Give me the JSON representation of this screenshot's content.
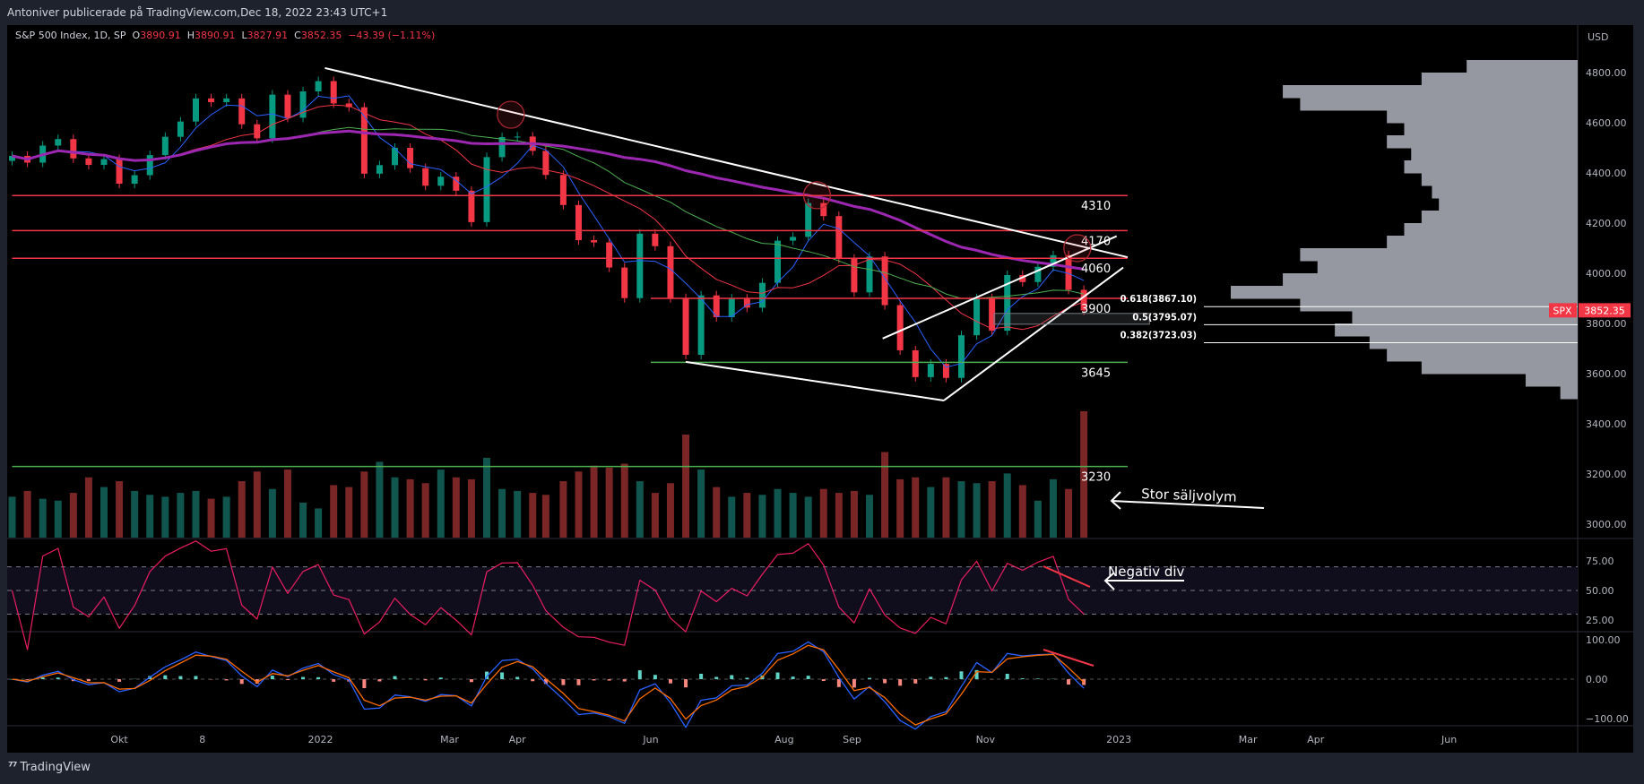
{
  "header": {
    "publisher_line": "Antoniver publicerade på TradingView.com,Dec 18, 2022 23:43 UTC+1"
  },
  "legend": {
    "symbol": "S&P 500 Index, 1D, SP",
    "open_label": "O",
    "open": "3890.91",
    "high_label": "H",
    "high": "3890.91",
    "low_label": "L",
    "low": "3827.91",
    "close_label": "C",
    "close": "3852.35",
    "change": "−43.39 (−1.11%)"
  },
  "price_scale": {
    "currency": "USD",
    "ticks": [
      "4800.00",
      "4600.00",
      "4400.00",
      "4200.00",
      "4000.00",
      "3800.00",
      "3600.00",
      "3400.00",
      "3200.00",
      "3000.00"
    ]
  },
  "last_price": {
    "symbol": "SPX",
    "value": "3852.35",
    "color": "#f23645"
  },
  "rsi_scale": {
    "ticks": [
      "75.00",
      "50.00",
      "25.00"
    ]
  },
  "macd_scale": {
    "ticks": [
      "100.00",
      "0.00",
      "−100.00"
    ]
  },
  "footer": {
    "brand": "TradingView"
  },
  "colors": {
    "up": "#089981",
    "down": "#f23645",
    "ma20": "#2962ff",
    "ma50": "#f23645",
    "ma100": "#4caf50",
    "ma200": "#9c27b0",
    "rsi": "#e91e63",
    "macd": "#2962ff",
    "signal": "#ff6d00",
    "profile": "#9598a1"
  },
  "chart_data": {
    "type": "candlestick",
    "title": "S&P 500 Index, 1D, SP",
    "ylim": [
      2900,
      4900
    ],
    "x_axis": [
      {
        "label": "Okt",
        "date": "2021-10-01"
      },
      {
        "label": "8",
        "date": "2021-11-08"
      },
      {
        "label": "2022",
        "date": "2022-01-01"
      },
      {
        "label": "Mar",
        "date": "2022-03-01"
      },
      {
        "label": "Apr",
        "date": "2022-04-01"
      },
      {
        "label": "Jun",
        "date": "2022-06-01"
      },
      {
        "label": "Aug",
        "date": "2022-08-01"
      },
      {
        "label": "Sep",
        "date": "2022-09-01"
      },
      {
        "label": "Nov",
        "date": "2022-11-01"
      },
      {
        "label": "2023",
        "date": "2023-01-01"
      },
      {
        "label": "Mar",
        "date": "2023-03-01"
      },
      {
        "label": "Apr",
        "date": "2023-04-01"
      },
      {
        "label": "Jun",
        "date": "2023-06-01"
      },
      {
        "label": "Aug",
        "date": "2023-08-01"
      }
    ],
    "columns": [
      "date",
      "close",
      "volume"
    ],
    "bars": [
      [
        "2021-08-13",
        4468,
        3.6
      ],
      [
        "2021-08-20",
        4441,
        3.9
      ],
      [
        "2021-08-27",
        4509,
        3.5
      ],
      [
        "2021-09-03",
        4535,
        3.4
      ],
      [
        "2021-09-10",
        4458,
        3.8
      ],
      [
        "2021-09-17",
        4432,
        4.6
      ],
      [
        "2021-09-24",
        4455,
        4.1
      ],
      [
        "2021-10-01",
        4357,
        4.4
      ],
      [
        "2021-10-08",
        4391,
        3.9
      ],
      [
        "2021-10-15",
        4471,
        3.7
      ],
      [
        "2021-10-22",
        4544,
        3.6
      ],
      [
        "2021-10-29",
        4605,
        3.8
      ],
      [
        "2021-11-05",
        4697,
        3.9
      ],
      [
        "2021-11-12",
        4682,
        3.5
      ],
      [
        "2021-11-19",
        4697,
        3.6
      ],
      [
        "2021-11-26",
        4594,
        4.4
      ],
      [
        "2021-12-03",
        4538,
        4.9
      ],
      [
        "2021-12-10",
        4712,
        4.0
      ],
      [
        "2021-12-17",
        4620,
        5.0
      ],
      [
        "2021-12-24",
        4725,
        3.3
      ],
      [
        "2021-12-31",
        4766,
        3.0
      ],
      [
        "2022-01-07",
        4677,
        4.2
      ],
      [
        "2022-01-14",
        4662,
        4.1
      ],
      [
        "2022-01-21",
        4397,
        4.9
      ],
      [
        "2022-01-28",
        4431,
        5.4
      ],
      [
        "2022-02-04",
        4500,
        4.6
      ],
      [
        "2022-02-11",
        4419,
        4.5
      ],
      [
        "2022-02-18",
        4349,
        4.3
      ],
      [
        "2022-02-25",
        4385,
        5.0
      ],
      [
        "2022-03-04",
        4329,
        4.6
      ],
      [
        "2022-03-11",
        4204,
        4.5
      ],
      [
        "2022-03-18",
        4463,
        5.6
      ],
      [
        "2022-03-25",
        4543,
        4.0
      ],
      [
        "2022-04-01",
        4545,
        3.9
      ],
      [
        "2022-04-08",
        4488,
        3.8
      ],
      [
        "2022-04-14",
        4392,
        3.7
      ],
      [
        "2022-04-22",
        4272,
        4.4
      ],
      [
        "2022-04-29",
        4132,
        4.9
      ],
      [
        "2022-05-06",
        4123,
        5.2
      ],
      [
        "2022-05-13",
        4023,
        5.1
      ],
      [
        "2022-05-20",
        3901,
        5.3
      ],
      [
        "2022-05-27",
        4158,
        4.4
      ],
      [
        "2022-06-03",
        4108,
        3.8
      ],
      [
        "2022-06-10",
        3901,
        4.3
      ],
      [
        "2022-06-17",
        3675,
        6.8
      ],
      [
        "2022-06-24",
        3912,
        5.0
      ],
      [
        "2022-07-01",
        3825,
        4.1
      ],
      [
        "2022-07-08",
        3899,
        3.6
      ],
      [
        "2022-07-15",
        3863,
        3.8
      ],
      [
        "2022-07-22",
        3962,
        3.7
      ],
      [
        "2022-07-29",
        4130,
        4.0
      ],
      [
        "2022-08-05",
        4145,
        3.8
      ],
      [
        "2022-08-12",
        4280,
        3.6
      ],
      [
        "2022-08-19",
        4228,
        4.0
      ],
      [
        "2022-08-26",
        4058,
        3.8
      ],
      [
        "2022-09-02",
        3924,
        3.9
      ],
      [
        "2022-09-09",
        4067,
        3.7
      ],
      [
        "2022-09-16",
        3873,
        5.9
      ],
      [
        "2022-09-23",
        3693,
        4.5
      ],
      [
        "2022-09-30",
        3586,
        4.6
      ],
      [
        "2022-10-07",
        3639,
        4.1
      ],
      [
        "2022-10-14",
        3583,
        4.6
      ],
      [
        "2022-10-21",
        3753,
        4.4
      ],
      [
        "2022-10-28",
        3901,
        4.3
      ],
      [
        "2022-11-04",
        3771,
        4.4
      ],
      [
        "2022-11-11",
        3993,
        4.8
      ],
      [
        "2022-11-18",
        3965,
        4.2
      ],
      [
        "2022-11-25",
        4026,
        3.4
      ],
      [
        "2022-12-02",
        4072,
        4.5
      ],
      [
        "2022-12-09",
        3934,
        4.0
      ],
      [
        "2022-12-16",
        3852,
        8.0
      ]
    ],
    "moving_averages_days": [
      20,
      50,
      100,
      200
    ],
    "indicators": {
      "rsi_period_days": 14,
      "rsi_levels": [
        70,
        50,
        30
      ],
      "macd_days": [
        12,
        26,
        9
      ],
      "rsi_ylim": [
        10,
        95
      ],
      "macd_ylim": [
        -120,
        120
      ]
    },
    "volume_profile": {
      "bucket_start": 3500,
      "bucket_size": 50,
      "relative": [
        0.05,
        0.15,
        0.45,
        0.55,
        0.6,
        0.7,
        0.65,
        0.8,
        1.0,
        0.85,
        0.75,
        0.8,
        0.55,
        0.5,
        0.45,
        0.4,
        0.42,
        0.45,
        0.5,
        0.48,
        0.55,
        0.5,
        0.55,
        0.8,
        0.85,
        0.45,
        0.32
      ]
    },
    "horizontal_levels": [
      {
        "label": "4310",
        "price": 4310,
        "color": "#f23645",
        "from": "2021-08-13"
      },
      {
        "label": "4170",
        "price": 4170,
        "color": "#f23645",
        "from": "2021-08-13"
      },
      {
        "label": "4060",
        "price": 4060,
        "color": "#f23645",
        "from": "2021-08-13"
      },
      {
        "label": "3900",
        "price": 3900,
        "color": "#f23645",
        "from": "2022-06-01"
      },
      {
        "label": "3645",
        "price": 3645,
        "color": "#4caf50",
        "from": "2022-06-01"
      },
      {
        "label": "3230",
        "price": 3230,
        "color": "#4caf50",
        "from": "2021-08-13"
      }
    ],
    "levels_end": "2023-01-05",
    "trendlines": [
      {
        "from": [
          "2022-01-03",
          4818
        ],
        "to": [
          "2023-01-05",
          4064
        ]
      },
      {
        "from": [
          "2022-06-17",
          3647
        ],
        "to": [
          "2022-10-13",
          3493
        ]
      },
      {
        "from": [
          "2022-09-15",
          3740
        ],
        "to": [
          "2022-12-31",
          4148
        ]
      },
      {
        "from": [
          "2022-10-13",
          3493
        ],
        "to": [
          "2023-01-03",
          4023
        ]
      }
    ],
    "circles": [
      [
        "2022-03-29",
        4632
      ],
      [
        "2022-08-16",
        4311
      ],
      [
        "2022-12-13",
        4100
      ]
    ],
    "box": {
      "from": "2022-11-05",
      "to": "2023-01-15",
      "top": 3840,
      "bottom": 3797
    },
    "fibonacci": [
      {
        "label": "0.618(3867.10)",
        "price": 3867.1
      },
      {
        "label": "0.5(3795.07)",
        "price": 3795.07
      },
      {
        "label": "0.382(3723.03)",
        "price": 3723.03
      }
    ],
    "annotations": [
      {
        "text": "Stor säljvolym",
        "pane": "volume"
      },
      {
        "text": "Negativ div",
        "pane": "rsi"
      }
    ]
  }
}
